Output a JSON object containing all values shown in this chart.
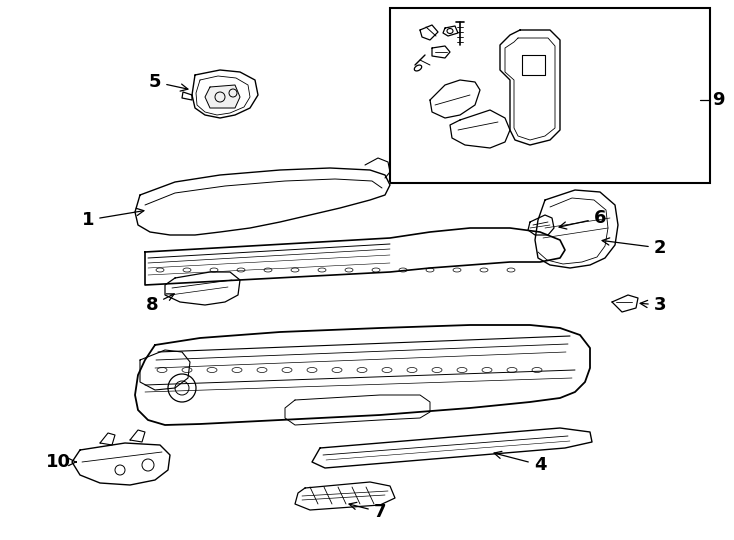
{
  "background_color": "#ffffff",
  "line_color": "#000000",
  "fig_width": 7.34,
  "fig_height": 5.4,
  "dpi": 100,
  "label_fontsize": 13
}
